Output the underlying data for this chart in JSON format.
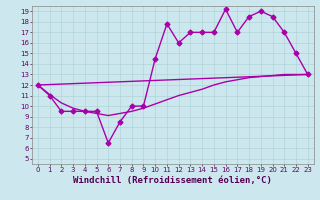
{
  "title": "",
  "xlabel": "Windchill (Refroidissement éolien,°C)",
  "ylabel": "",
  "bg_color": "#cce8ee",
  "line_color": "#aa00aa",
  "xlim": [
    -0.5,
    23.5
  ],
  "ylim": [
    4.5,
    19.5
  ],
  "xticks": [
    0,
    1,
    2,
    3,
    4,
    5,
    6,
    7,
    8,
    9,
    10,
    11,
    12,
    13,
    14,
    15,
    16,
    17,
    18,
    19,
    20,
    21,
    22,
    23
  ],
  "yticks": [
    5,
    6,
    7,
    8,
    9,
    10,
    11,
    12,
    13,
    14,
    15,
    16,
    17,
    18,
    19
  ],
  "line1_x": [
    0,
    1,
    2,
    3,
    4,
    5,
    6,
    7,
    8,
    9,
    10,
    11,
    12,
    13,
    14,
    15,
    16,
    17,
    18,
    19,
    20,
    21,
    22,
    23
  ],
  "line1_y": [
    12,
    11,
    9.5,
    9.5,
    9.5,
    9.5,
    6.5,
    8.5,
    10,
    10,
    14.5,
    17.8,
    16,
    17,
    17,
    17,
    19.2,
    17,
    18.5,
    19,
    18.5,
    17,
    15,
    13
  ],
  "line2_x": [
    0,
    1,
    2,
    3,
    4,
    5,
    6,
    7,
    8,
    9,
    10,
    11,
    12,
    13,
    14,
    15,
    16,
    17,
    18,
    19,
    20,
    21,
    22,
    23
  ],
  "line2_y": [
    12,
    11.1,
    10.3,
    9.8,
    9.5,
    9.3,
    9.1,
    9.3,
    9.5,
    9.8,
    10.2,
    10.6,
    11.0,
    11.3,
    11.6,
    12.0,
    12.3,
    12.5,
    12.7,
    12.8,
    12.9,
    13.0,
    13.0,
    13.0
  ],
  "line3_x": [
    0,
    23
  ],
  "line3_y": [
    12,
    13
  ],
  "grid_color": "#b0d4d8",
  "marker": "D",
  "marker_size": 2.5,
  "line_width": 1.0,
  "tick_fontsize": 5,
  "xlabel_fontsize": 6.5
}
